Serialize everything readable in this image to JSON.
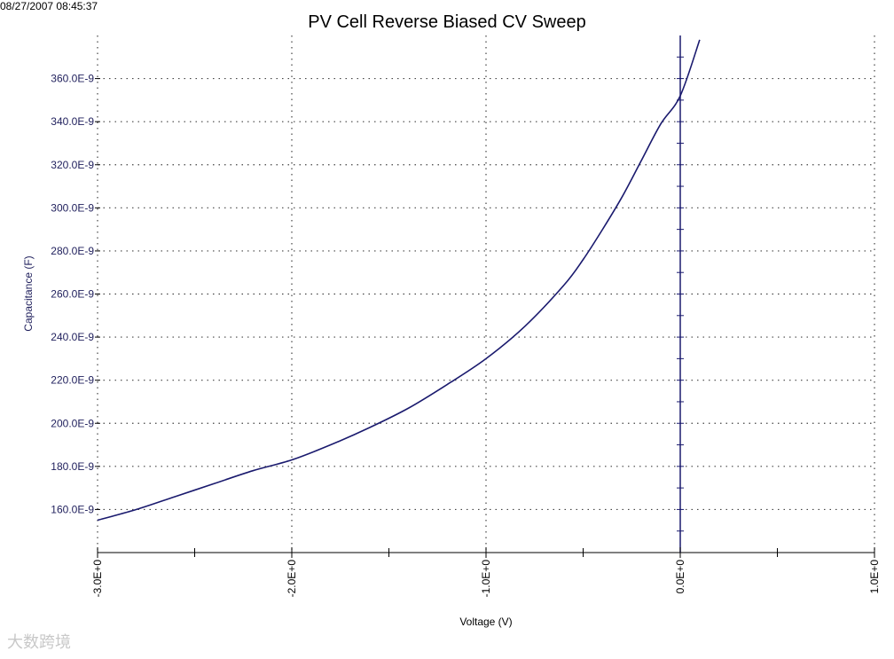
{
  "timestamp": "08/27/2007 08:45:37",
  "watermark": "大数跨境",
  "chart_data": {
    "type": "line",
    "title": "PV Cell Reverse Biased CV Sweep",
    "xlabel": "Voltage (V)",
    "ylabel": "Capacitance (F)",
    "xlim": [
      -3.0,
      1.0
    ],
    "ylim": [
      140,
      380
    ],
    "y_unit_suffix": "E-9",
    "x_ticks": [
      -3.0,
      -2.0,
      -1.0,
      0.0,
      1.0
    ],
    "x_tick_labels": [
      "-3.0E+0",
      "-2.0E+0",
      "-1.0E+0",
      "0.0E+0",
      "1.0E+0"
    ],
    "y_ticks": [
      160,
      180,
      200,
      220,
      240,
      260,
      280,
      300,
      320,
      340,
      360
    ],
    "y_tick_labels": [
      "160.0E-9",
      "180.0E-9",
      "200.0E-9",
      "220.0E-9",
      "240.0E-9",
      "260.0E-9",
      "280.0E-9",
      "300.0E-9",
      "320.0E-9",
      "340.0E-9",
      "360.0E-9"
    ],
    "grid": true,
    "zero_line_x": 0.0,
    "series": [
      {
        "color": "#1a1a6e",
        "x": [
          -3.0,
          -2.8,
          -2.6,
          -2.4,
          -2.2,
          -2.0,
          -1.8,
          -1.6,
          -1.4,
          -1.2,
          -1.0,
          -0.8,
          -0.6,
          -0.5,
          -0.4,
          -0.3,
          -0.2,
          -0.1,
          0.0,
          0.1
        ],
        "y": [
          155,
          160,
          166,
          172,
          178,
          183,
          190,
          198,
          207,
          218,
          230,
          245,
          264,
          276,
          290,
          305,
          322,
          339,
          352,
          378
        ]
      }
    ]
  }
}
